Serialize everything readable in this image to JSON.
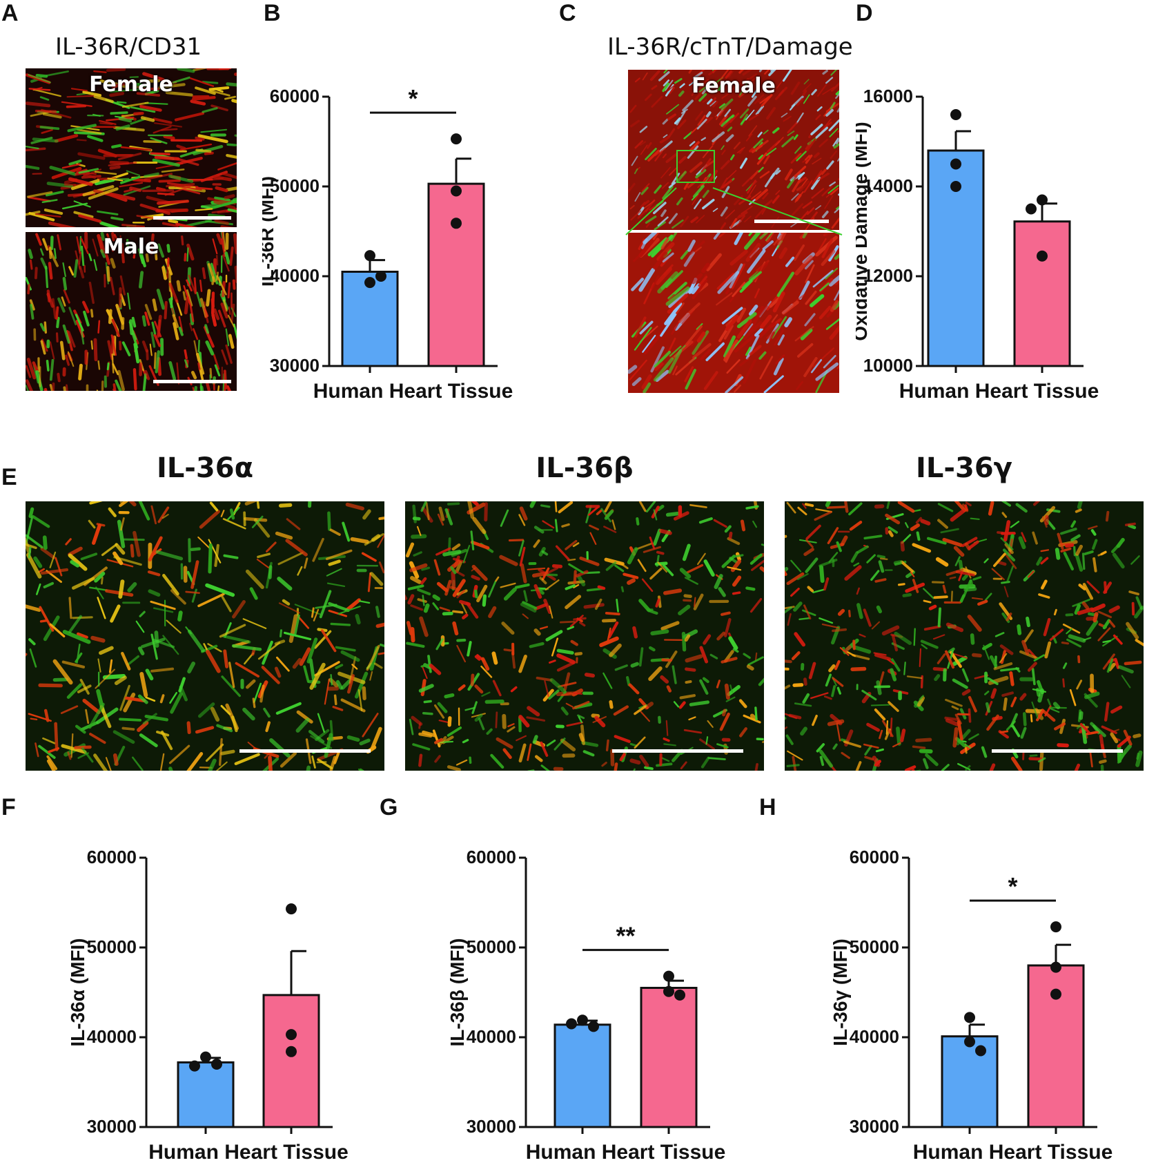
{
  "panel_letters": {
    "A": "A",
    "B": "B",
    "C": "C",
    "D": "D",
    "E": "E",
    "F": "F",
    "G": "G",
    "H": "H"
  },
  "micrographs": {
    "A": {
      "title": "IL-36R/CD31",
      "top_label": "Female",
      "bottom_label": "Male"
    },
    "C": {
      "title": "IL-36R/cTnT/Damage",
      "top_label": "Female"
    },
    "E": {
      "titles": [
        "IL-36α",
        "IL-36β",
        "IL-36γ"
      ]
    }
  },
  "colors": {
    "blue": "#5aa6f5",
    "pink": "#f5688f",
    "green": "#3ecf2f",
    "red": "#d81c10",
    "yellow": "#f2a412"
  },
  "chart_data": [
    {
      "id": "B",
      "type": "bar",
      "title": "",
      "xlabel": "Human Heart Tissue",
      "ylabel": "IL-36R (MFI)",
      "ylim": [
        30000,
        60000
      ],
      "yticks": [
        30000,
        40000,
        50000,
        60000
      ],
      "bars": [
        {
          "value": 40500,
          "sem": 1300,
          "color": "#5aa6f5",
          "points": [
            42300,
            39300,
            40000
          ]
        },
        {
          "value": 50300,
          "sem": 2800,
          "color": "#f5688f",
          "points": [
            55300,
            49500,
            45900
          ]
        }
      ],
      "significance": "*"
    },
    {
      "id": "D",
      "type": "bar",
      "title": "",
      "xlabel": "Human Heart Tissue",
      "ylabel": "Oxidative Damage (MFI)",
      "ylim": [
        10000,
        16000
      ],
      "yticks": [
        10000,
        12000,
        14000,
        16000
      ],
      "bars": [
        {
          "value": 14800,
          "sem": 430,
          "color": "#5aa6f5",
          "points": [
            15600,
            14500,
            14000
          ]
        },
        {
          "value": 13220,
          "sem": 400,
          "color": "#f5688f",
          "points": [
            13700,
            13500,
            12450
          ]
        }
      ],
      "significance": ""
    },
    {
      "id": "F",
      "type": "bar",
      "title": "",
      "xlabel": "Human Heart Tissue",
      "ylabel": "IL-36α (MFI)",
      "ylim": [
        30000,
        60000
      ],
      "yticks": [
        30000,
        40000,
        50000,
        60000
      ],
      "bars": [
        {
          "value": 37200,
          "sem": 500,
          "color": "#5aa6f5",
          "points": [
            37800,
            36800,
            37000
          ]
        },
        {
          "value": 44700,
          "sem": 4900,
          "color": "#f5688f",
          "points": [
            54300,
            40300,
            38400
          ]
        }
      ],
      "significance": ""
    },
    {
      "id": "G",
      "type": "bar",
      "title": "",
      "xlabel": "Human Heart Tissue",
      "ylabel": "IL-36β (MFI)",
      "ylim": [
        30000,
        60000
      ],
      "yticks": [
        30000,
        40000,
        50000,
        60000
      ],
      "bars": [
        {
          "value": 41400,
          "sem": 450,
          "color": "#5aa6f5",
          "points": [
            41900,
            41500,
            41200
          ]
        },
        {
          "value": 45500,
          "sem": 800,
          "color": "#f5688f",
          "points": [
            46800,
            45100,
            44700
          ]
        }
      ],
      "significance": "**"
    },
    {
      "id": "H",
      "type": "bar",
      "title": "",
      "xlabel": "Human Heart Tissue",
      "ylabel": "IL-36γ (MFI)",
      "ylim": [
        30000,
        60000
      ],
      "yticks": [
        30000,
        40000,
        50000,
        60000
      ],
      "bars": [
        {
          "value": 40100,
          "sem": 1300,
          "color": "#5aa6f5",
          "points": [
            42200,
            39500,
            38500
          ]
        },
        {
          "value": 48000,
          "sem": 2300,
          "color": "#f5688f",
          "points": [
            52300,
            47800,
            44800
          ]
        }
      ],
      "significance": "*"
    }
  ]
}
